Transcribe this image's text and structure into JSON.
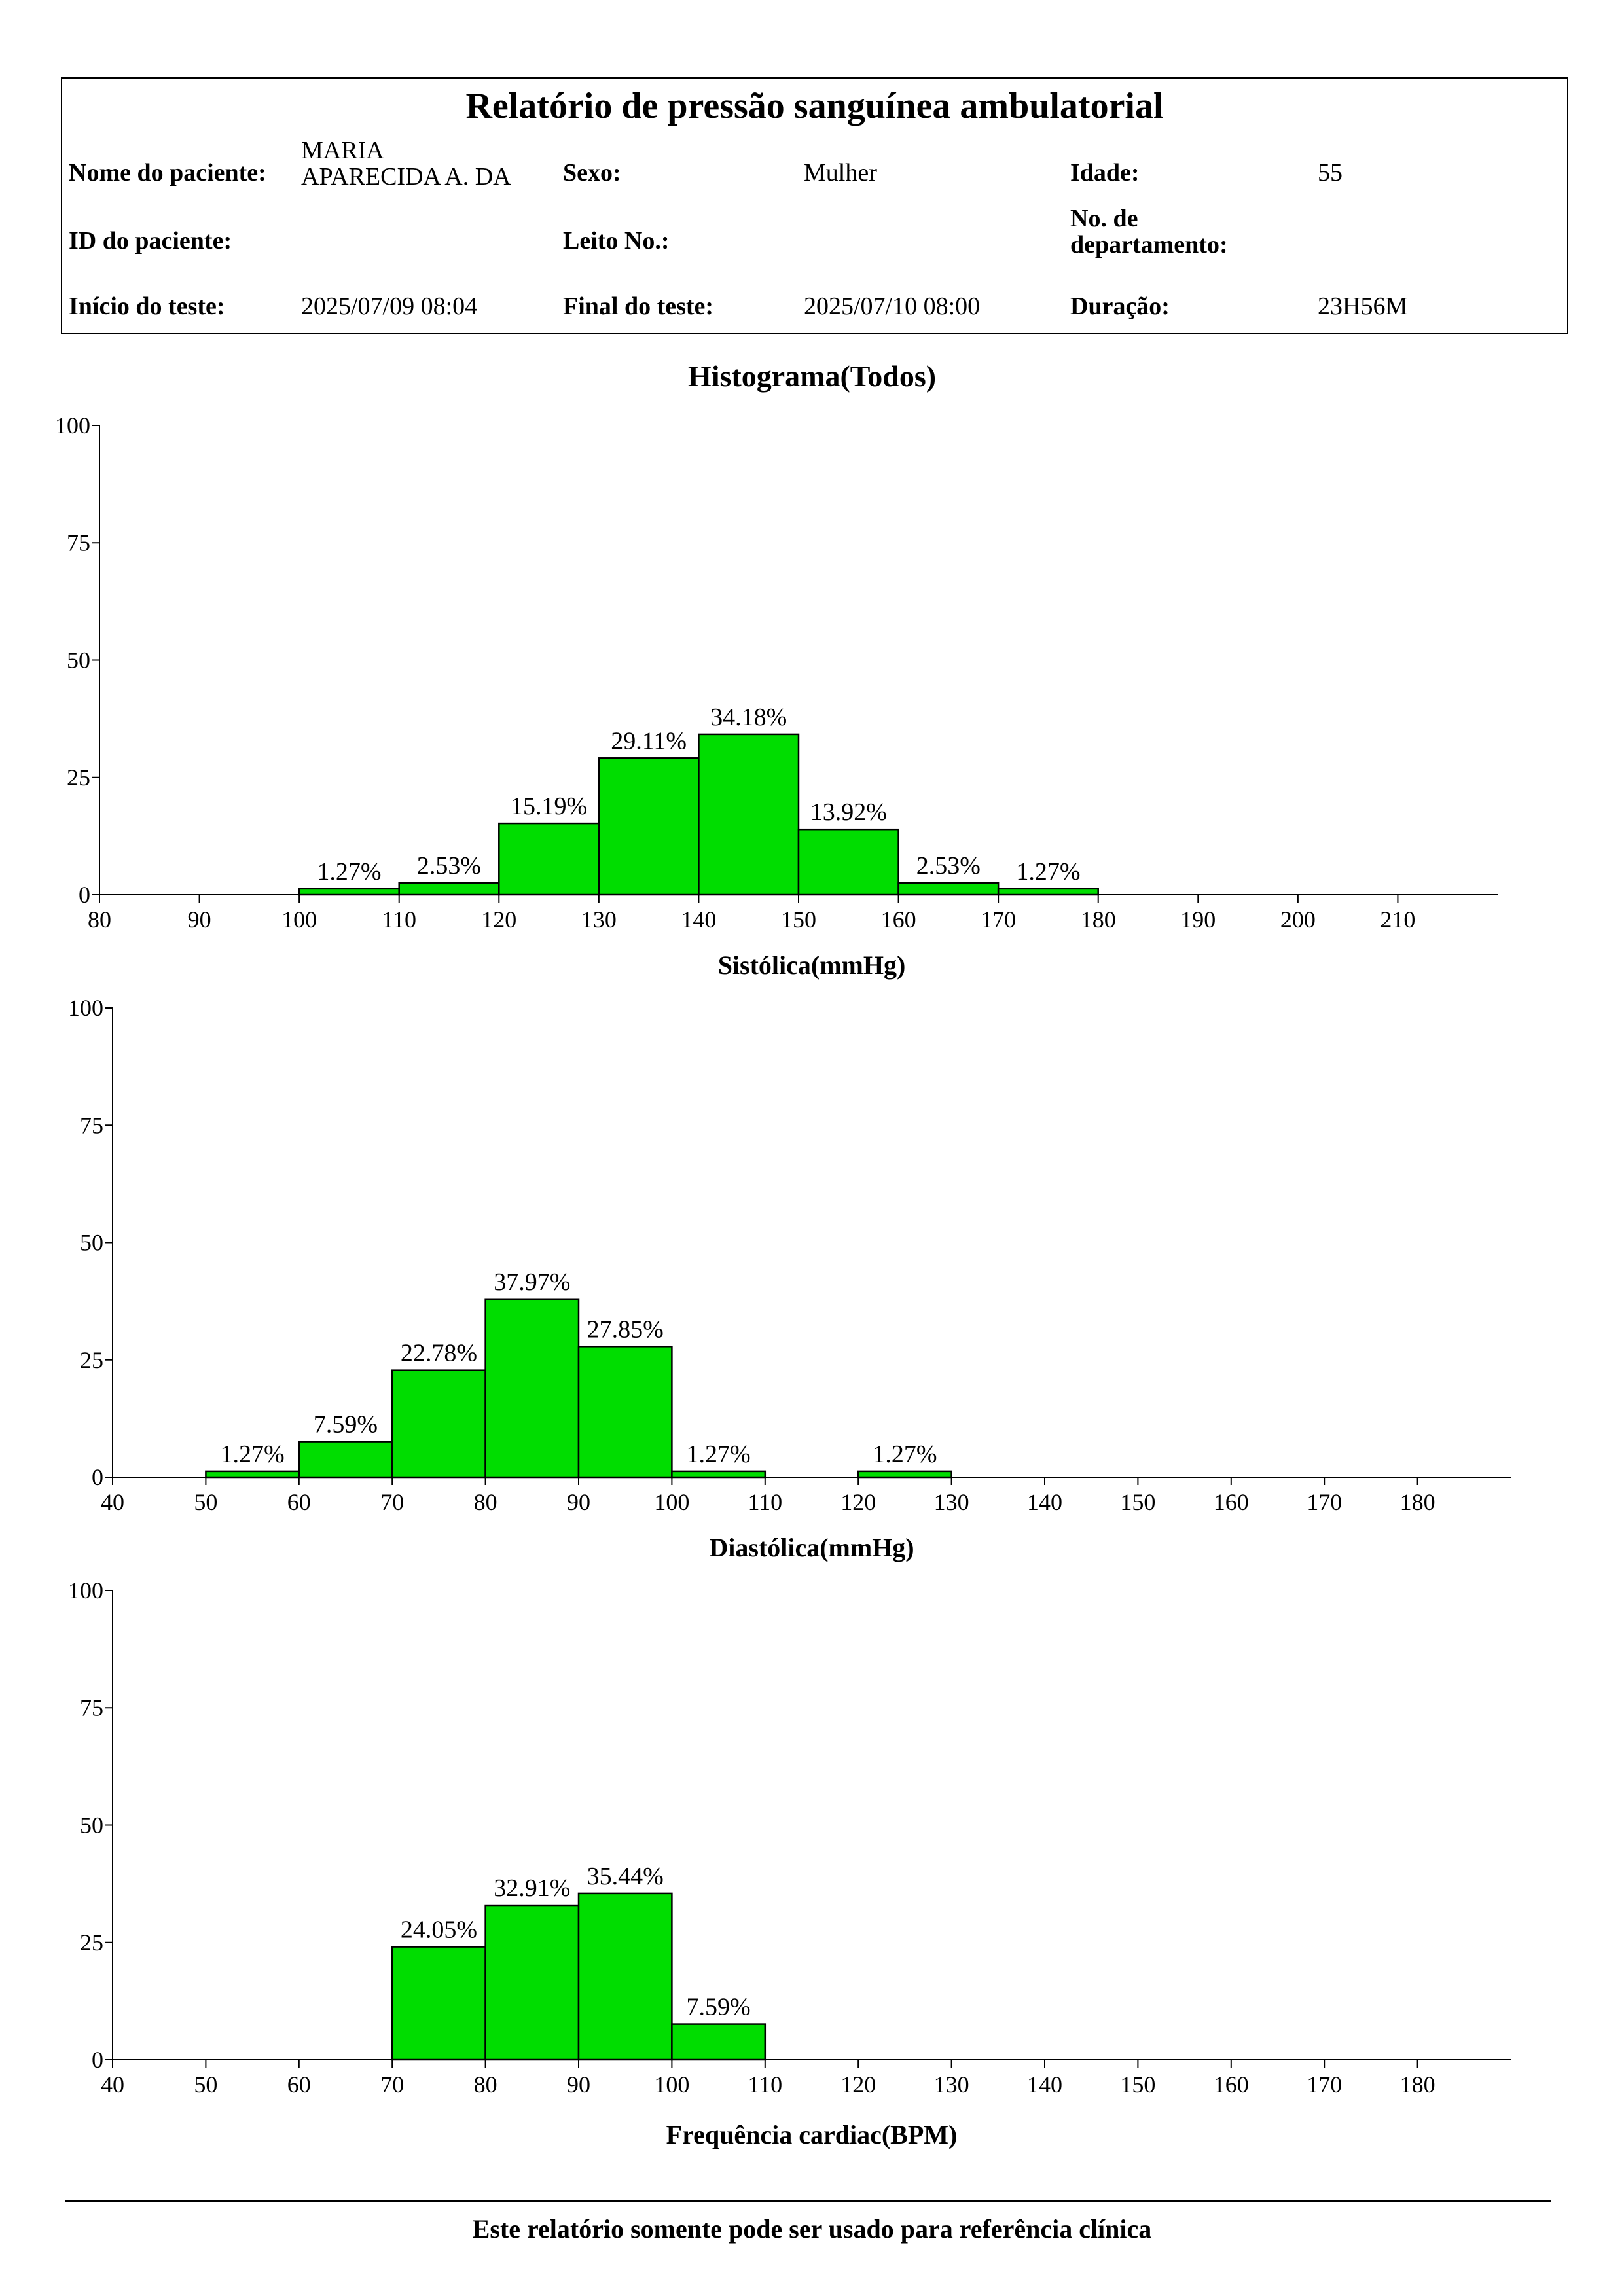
{
  "header": {
    "title": "Relatório de pressão sanguínea ambulatorial",
    "patient_name_label": "Nome do paciente:",
    "patient_name_line1": "MARIA",
    "patient_name_line2": "APARECIDA A. DA",
    "sex_label": "Sexo:",
    "sex_value": "Mulher",
    "age_label": "Idade:",
    "age_value": "55",
    "patient_id_label": "ID do paciente:",
    "patient_id_value": "",
    "bed_label": "Leito No.:",
    "bed_value": "",
    "department_label_line1": "No. de",
    "department_label_line2": "departamento:",
    "department_value": "",
    "start_label": "Início do teste:",
    "start_value": "2025/07/09 08:04",
    "end_label": "Final do teste:",
    "end_value": "2025/07/10 08:00",
    "duration_label": "Duração:",
    "duration_value": "23H56M"
  },
  "chart_title": "Histograma(Todos)",
  "chart_data": [
    {
      "type": "bar",
      "xlabel": "Sistólica(mmHg)",
      "xlim": [
        80,
        220
      ],
      "xticks": [
        80,
        90,
        100,
        110,
        120,
        130,
        140,
        150,
        160,
        170,
        180,
        190,
        200,
        210
      ],
      "ylim": [
        0,
        100
      ],
      "yticks": [
        0,
        25,
        50,
        75,
        100
      ],
      "bin_width": 10,
      "bins": [
        100,
        110,
        120,
        130,
        140,
        150,
        160,
        170
      ],
      "values": [
        1.27,
        2.53,
        15.19,
        29.11,
        34.18,
        13.92,
        2.53,
        1.27
      ],
      "labels": [
        "1.27%",
        "2.53%",
        "15.19%",
        "29.11%",
        "34.18%",
        "13.92%",
        "2.53%",
        "1.27%"
      ],
      "color": "#00dd00"
    },
    {
      "type": "bar",
      "xlabel": "Diastólica(mmHg)",
      "xlim": [
        40,
        190
      ],
      "xticks": [
        40,
        50,
        60,
        70,
        80,
        90,
        100,
        110,
        120,
        130,
        140,
        150,
        160,
        170,
        180
      ],
      "ylim": [
        0,
        100
      ],
      "yticks": [
        0,
        25,
        50,
        75,
        100
      ],
      "bin_width": 10,
      "bins": [
        50,
        60,
        70,
        80,
        90,
        100,
        120
      ],
      "values": [
        1.27,
        7.59,
        22.78,
        37.97,
        27.85,
        1.27,
        1.27
      ],
      "labels": [
        "1.27%",
        "7.59%",
        "22.78%",
        "37.97%",
        "27.85%",
        "1.27%",
        "1.27%"
      ],
      "color": "#00dd00"
    },
    {
      "type": "bar",
      "xlabel": "Frequência cardiac(BPM)",
      "xlim": [
        40,
        190
      ],
      "xticks": [
        40,
        50,
        60,
        70,
        80,
        90,
        100,
        110,
        120,
        130,
        140,
        150,
        160,
        170,
        180
      ],
      "ylim": [
        0,
        100
      ],
      "yticks": [
        0,
        25,
        50,
        75,
        100
      ],
      "bin_width": 10,
      "bins": [
        70,
        80,
        90,
        100
      ],
      "values": [
        24.05,
        32.91,
        35.44,
        7.59
      ],
      "labels": [
        "24.05%",
        "32.91%",
        "35.44%",
        "7.59%"
      ],
      "color": "#00dd00"
    }
  ],
  "footer": {
    "note": "Este relatório somente pode ser usado para referência clínica"
  }
}
